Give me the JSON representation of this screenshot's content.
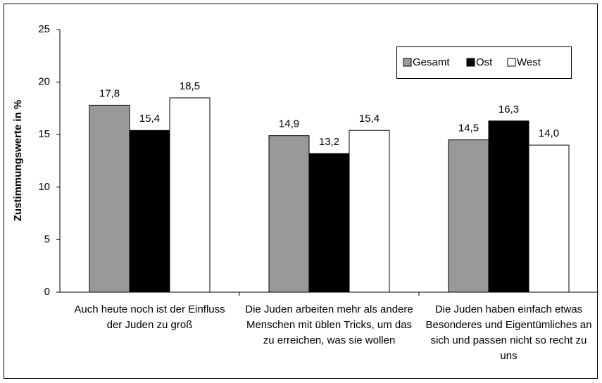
{
  "chart_data": {
    "type": "bar",
    "y_label": "Zustimmungswerte in %",
    "categories": [
      "Auch heute noch ist der Einfluss der Juden zu groß",
      "Die Juden arbeiten mehr als andere Menschen mit üblen Tricks, um das zu erreichen, was sie wollen",
      "Die Juden haben einfach etwas Besonderes und Eigentümliches an sich und passen nicht so recht zu uns"
    ],
    "series": [
      {
        "name": "Gesamt",
        "color": "#999999",
        "values": [
          17.8,
          14.9,
          14.5
        ],
        "value_labels": [
          "17,8",
          "14,9",
          "14,5"
        ]
      },
      {
        "name": "Ost",
        "color": "#000000",
        "values": [
          15.4,
          13.2,
          16.3
        ],
        "value_labels": [
          "15,4",
          "13,2",
          "16,3"
        ]
      },
      {
        "name": "West",
        "color": "#ffffff",
        "values": [
          18.5,
          15.4,
          14.0
        ],
        "value_labels": [
          "18,5",
          "15,4",
          "14,0"
        ]
      }
    ],
    "ylim": [
      0,
      25
    ],
    "yticks": [
      0,
      5,
      10,
      15,
      20,
      25
    ],
    "grid": false,
    "legend": "upper right"
  }
}
